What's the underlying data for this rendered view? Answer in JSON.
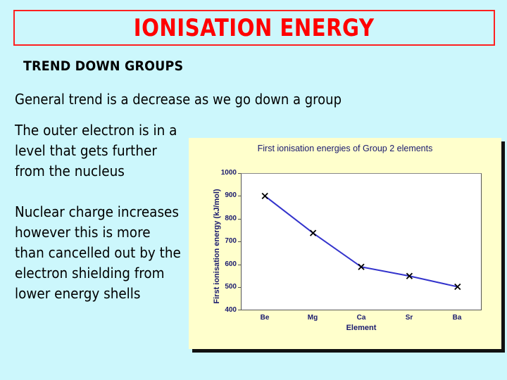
{
  "slide": {
    "title": "IONISATION ENERGY",
    "subheading": "TREND DOWN GROUPS",
    "lead": "General trend is a decrease as we go down a group",
    "paragraphs": [
      "The outer electron is in a level that gets further from the nucleus",
      "Nuclear charge increases however this is more than cancelled out by the electron shielding from lower energy shells"
    ],
    "colors": {
      "background": "#ccf7fc",
      "title": "#ff0000",
      "title_border": "#ff2020",
      "chart_panel": "#ffffcc",
      "series_line": "#3333cc",
      "axis_text": "#1a1a6e"
    }
  },
  "chart_data": {
    "type": "line",
    "title": "First ionisation energies of Group 2 elements",
    "xlabel": "Element",
    "ylabel": "First ionisation energy (kJ/mol)",
    "categories": [
      "Be",
      "Mg",
      "Ca",
      "Sr",
      "Ba"
    ],
    "series": [
      {
        "name": "First ionisation energy",
        "values": [
          900,
          738,
          590,
          550,
          503
        ],
        "color": "#3333cc",
        "marker": "x"
      }
    ],
    "ylim": [
      400,
      1000
    ],
    "yticks": [
      "1000",
      "900",
      "800",
      "700",
      "600",
      "500",
      "400"
    ],
    "grid": false,
    "legend": false
  }
}
